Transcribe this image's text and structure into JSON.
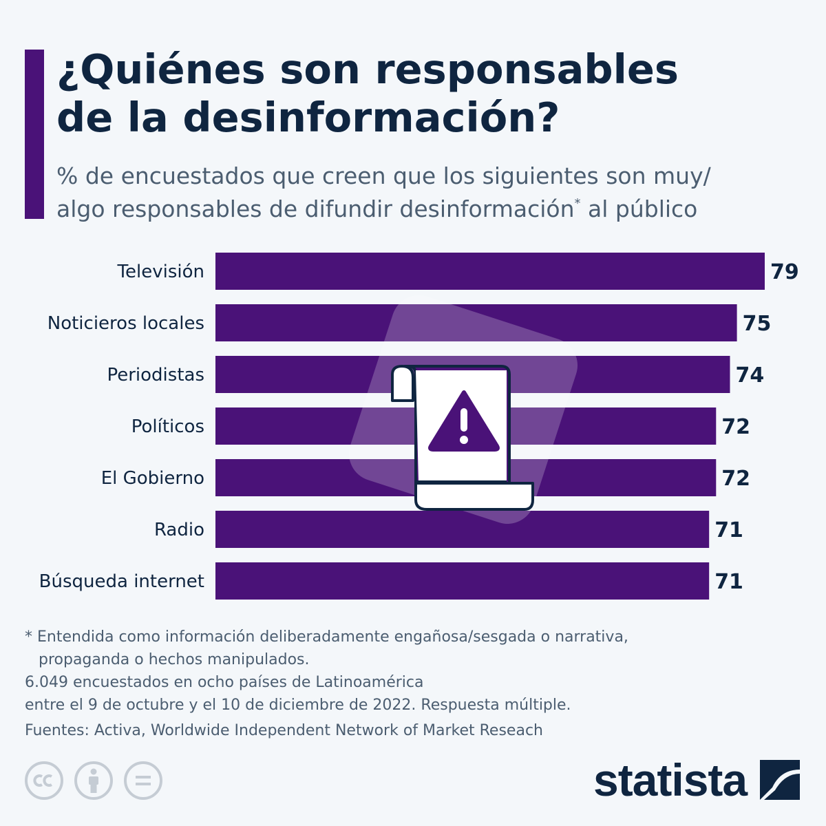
{
  "header": {
    "title_line1": "¿Quiénes son responsables",
    "title_line2": "de la desinformación?",
    "subtitle_line1": "% de encuestados que creen que los siguientes son muy/",
    "subtitle_line2_a": "algo responsables de difundir desinformación",
    "subtitle_sup": "*",
    "subtitle_line2_b": " al público"
  },
  "chart_data": {
    "type": "bar",
    "orientation": "horizontal",
    "categories": [
      "Televisión",
      "Noticieros locales",
      "Periodistas",
      "Políticos",
      "El Gobierno",
      "Radio",
      "Búsqueda internet"
    ],
    "values": [
      79,
      75,
      74,
      72,
      72,
      71,
      71
    ],
    "value_labels": [
      "79",
      "75",
      "74",
      "72",
      "72",
      "71",
      "71"
    ],
    "title": "¿Quiénes son responsables de la desinformación?",
    "xlim": [
      0,
      79
    ],
    "grid": false,
    "bar_color": "#4a1278",
    "center_icon": "warning-document-icon"
  },
  "footer": {
    "note_line1": "* Entendida como información deliberadamente engañosa/sesgada o narrativa,",
    "note_line2": "propaganda o hechos manipulados.",
    "note_line3": "6.049 encuestados en ocho países de Latinoamérica",
    "note_line4": "entre el 9 de octubre y el 10 de diciembre de 2022. Respuesta múltiple.",
    "sources": "Fuentes: Activa, Worldwide Independent Network of Market Reseach"
  },
  "license_icons": [
    "cc-icon",
    "attribution-icon",
    "no-derivatives-icon"
  ],
  "brand": {
    "name": "statista",
    "color": "#0f2540"
  }
}
